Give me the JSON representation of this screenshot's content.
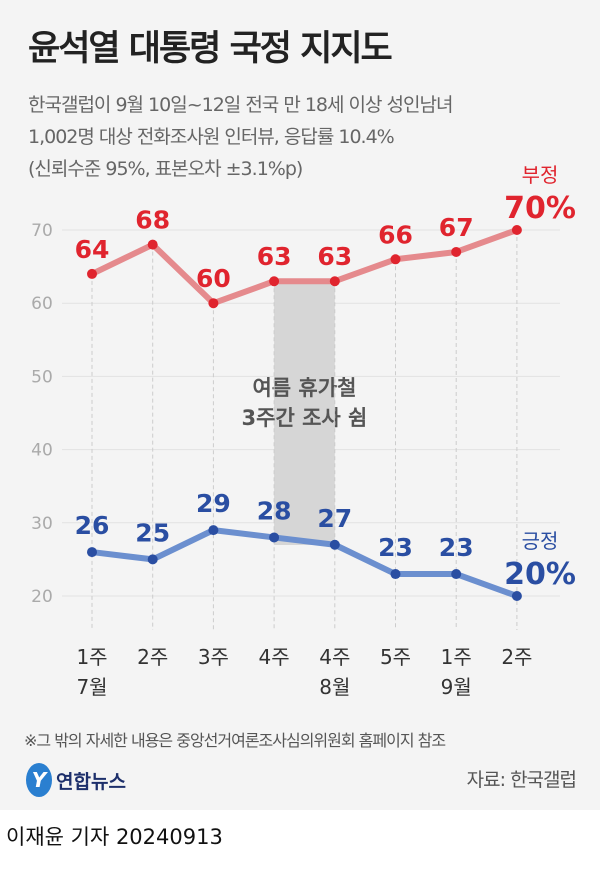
{
  "chart_data": {
    "type": "line",
    "title": "윤석열 대통령 국정 지지도",
    "subtitle": [
      "한국갤럽이 9월 10일~12일 전국 만 18세 이상 성인남녀",
      "1,002명 대상 전화조사원 인터뷰, 응답률 10.4%",
      "(신뢰수준 95%, 표본오차 ±3.1%p)"
    ],
    "categories": [
      [
        "1주",
        "7월"
      ],
      [
        "2주",
        ""
      ],
      [
        "3주",
        ""
      ],
      [
        "4주",
        ""
      ],
      [
        "4주",
        "8월"
      ],
      [
        "5주",
        ""
      ],
      [
        "1주",
        "9월"
      ],
      [
        "2주",
        ""
      ]
    ],
    "ylim": [
      20,
      70
    ],
    "yticks": [
      "70",
      "60",
      "50",
      "40",
      "30",
      "20"
    ],
    "series": [
      {
        "name": "부정",
        "last_label": "70%",
        "color": "#e0242e",
        "line_color": "#e58a8d",
        "values": [
          64,
          68,
          60,
          63,
          63,
          66,
          67,
          70
        ]
      },
      {
        "name": "긍정",
        "last_label": "20%",
        "color": "#2a4ea2",
        "line_color": "#6b8fcf",
        "values": [
          26,
          25,
          29,
          28,
          27,
          23,
          23,
          20
        ]
      }
    ],
    "annotation": [
      "여름 휴가철",
      "3주간 조사 쉼"
    ],
    "grid": true
  },
  "footer": {
    "note": "※그 밖의 자세한 내용은 중앙선거여론조사심의위원회 홈페이지 참조",
    "logo": "연합뉴스",
    "source": "자료: 한국갤럽",
    "author": "이재윤 기자 20240913"
  }
}
